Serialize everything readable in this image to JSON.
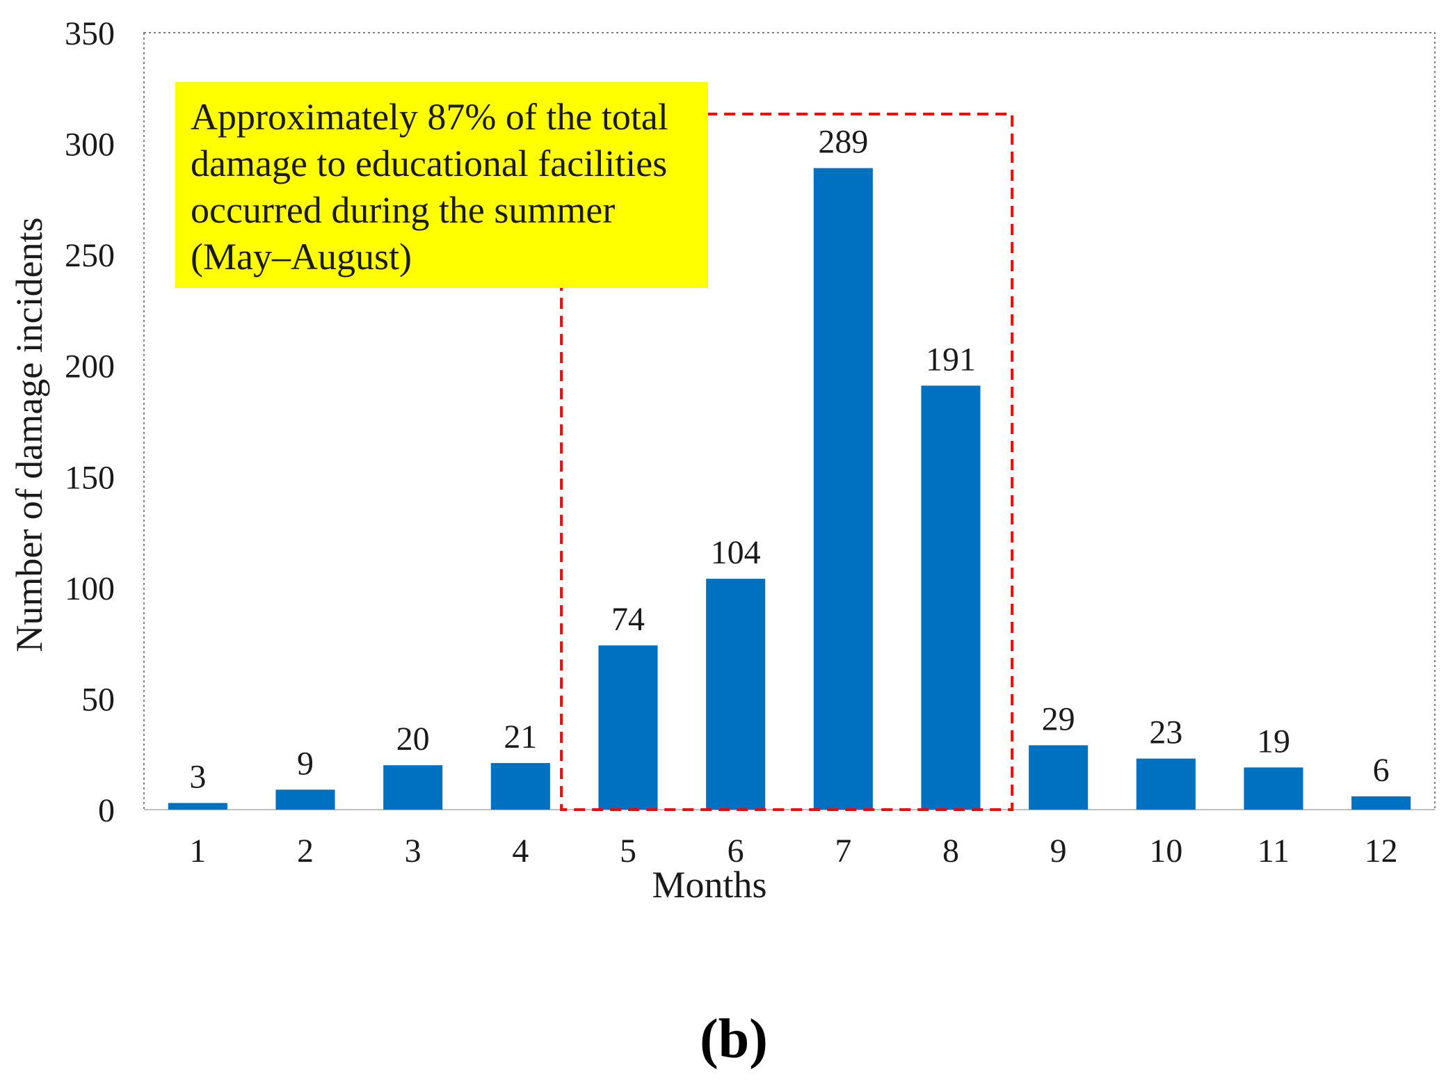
{
  "chart_data": {
    "type": "bar",
    "categories": [
      "1",
      "2",
      "3",
      "4",
      "5",
      "6",
      "7",
      "8",
      "9",
      "10",
      "11",
      "12"
    ],
    "values": [
      3,
      9,
      20,
      21,
      74,
      104,
      289,
      191,
      29,
      23,
      19,
      6
    ],
    "data_labels": [
      "3",
      "9",
      "20",
      "21",
      "74",
      "104",
      "289",
      "191",
      "29",
      "23",
      "19",
      "6"
    ],
    "xlabel": "Months",
    "ylabel": "Number of damage incidents",
    "ylim": [
      0,
      350
    ],
    "yticks": [
      0,
      50,
      100,
      150,
      200,
      250,
      300,
      350
    ],
    "grid": false,
    "bar_color": "#0070c0",
    "highlight": {
      "categories": [
        "5",
        "6",
        "7",
        "8"
      ],
      "border_color": "#ff0000",
      "border_style": "dashed"
    },
    "annotation": {
      "lines": [
        "Approximately 87% of the total",
        "damage to educational facilities",
        "occurred during the summer",
        "(May–August)"
      ],
      "background_color": "#ffff00"
    },
    "panel_label": "(b)"
  }
}
